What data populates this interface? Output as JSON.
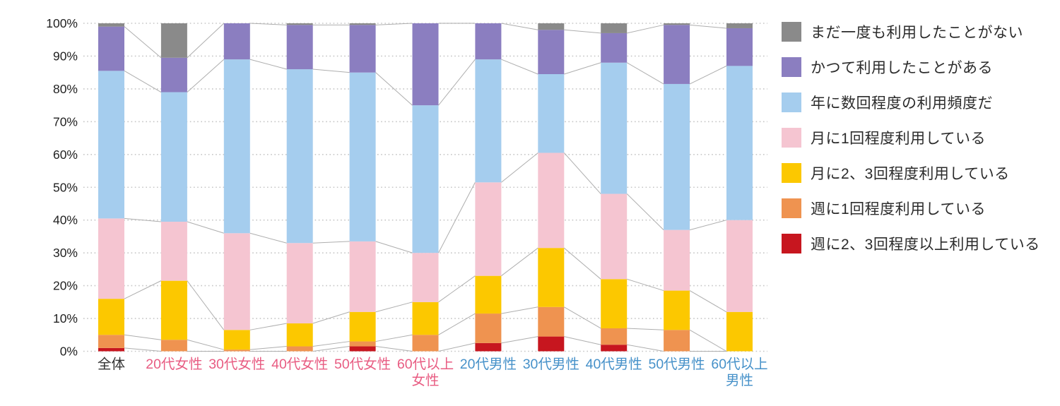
{
  "chart_data": {
    "type": "bar",
    "subtype": "100-percent-stacked-columns-with-connector-lines",
    "title": "",
    "xlabel": "",
    "ylabel": "",
    "ylim": [
      0,
      100
    ],
    "grid": "horizontal-dotted",
    "legend_position": "right",
    "y_ticks": [
      "0%",
      "10%",
      "20%",
      "30%",
      "40%",
      "50%",
      "60%",
      "70%",
      "80%",
      "90%",
      "100%"
    ],
    "categories": [
      {
        "label": "全体",
        "color": "#333333"
      },
      {
        "label": "20代女性",
        "color": "#e85c82"
      },
      {
        "label": "30代女性",
        "color": "#e85c82"
      },
      {
        "label": "40代女性",
        "color": "#e85c82"
      },
      {
        "label": "50代女性",
        "color": "#e85c82"
      },
      {
        "label": "60代以上\n女性",
        "color": "#e85c82"
      },
      {
        "label": "20代男性",
        "color": "#4691c9"
      },
      {
        "label": "30代男性",
        "color": "#4691c9"
      },
      {
        "label": "40代男性",
        "color": "#4691c9"
      },
      {
        "label": "50代男性",
        "color": "#4691c9"
      },
      {
        "label": "60代以上\n男性",
        "color": "#4691c9"
      }
    ],
    "series": [
      {
        "name": "週に2、3回程度以上利用している",
        "color": "#c7161f",
        "values": [
          1,
          0,
          0,
          0,
          1.5,
          0,
          2.5,
          4.5,
          2,
          0,
          0
        ]
      },
      {
        "name": "週に1回程度利用している",
        "color": "#ef9350",
        "values": [
          4,
          3.5,
          0.5,
          1.5,
          1.5,
          5,
          9,
          9,
          5,
          6.5,
          0
        ]
      },
      {
        "name": "月に2、3回程度利用している",
        "color": "#fcc800",
        "values": [
          11,
          18,
          6,
          7,
          9,
          10,
          11.5,
          18,
          15,
          12,
          12
        ]
      },
      {
        "name": "月に1回程度利用している",
        "color": "#f5c5d1",
        "values": [
          24.5,
          18,
          29.5,
          24.5,
          21.5,
          15,
          28.5,
          29,
          26,
          18.5,
          28
        ]
      },
      {
        "name": "年に数回程度の利用頻度だ",
        "color": "#a5cdee",
        "values": [
          45,
          39.5,
          53,
          53,
          51.5,
          45,
          37.5,
          24,
          40,
          44.5,
          47
        ]
      },
      {
        "name": "かつて利用したことがある",
        "color": "#8b7ec0",
        "values": [
          13.5,
          10.5,
          11,
          13.5,
          14.5,
          25,
          11,
          13.5,
          9,
          18,
          11.5
        ]
      },
      {
        "name": "まだ一度も利用したことがない",
        "color": "#8a8a8a",
        "values": [
          1,
          10.5,
          0,
          0.5,
          0.5,
          0,
          0,
          2,
          3,
          0.5,
          1.5
        ]
      }
    ],
    "legend_note": "legend listed top-to-bottom in reverse stacking order (gray first, red last)",
    "colors": {
      "grid_line": "#c6c6c6",
      "connector_line": "#aeaeae",
      "axis_tick_text": "#222222",
      "female_label": "#e85c82",
      "male_label": "#4691c9"
    }
  }
}
